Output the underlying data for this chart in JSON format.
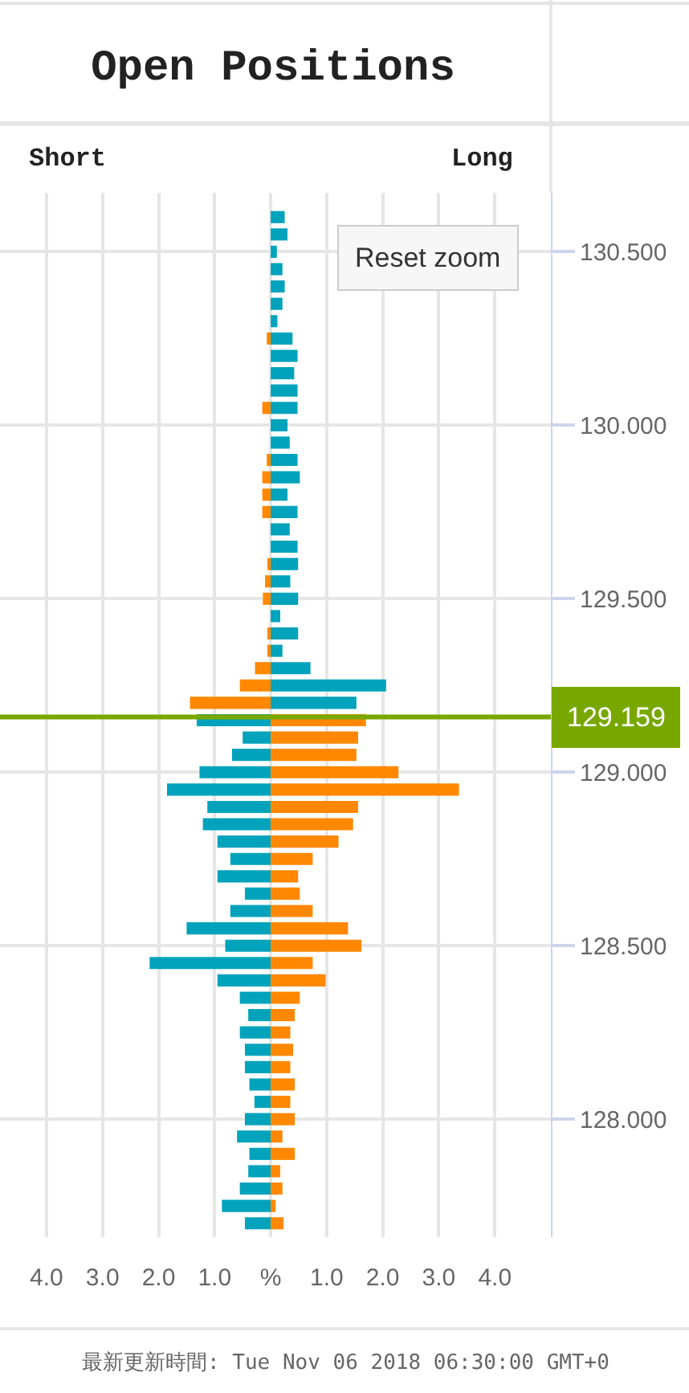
{
  "chart_data": {
    "type": "bar",
    "orientation": "horizontal",
    "stacked": true,
    "title": "Open Positions",
    "annotations": [
      "Short",
      "Long",
      "Reset zoom",
      "最新更新時間: Tue Nov 06 2018 06:30:00 GMT+0"
    ],
    "x": [
      130.6,
      130.55,
      130.5,
      130.45,
      130.4,
      130.35,
      130.3,
      130.25,
      130.2,
      130.15,
      130.1,
      130.05,
      130.0,
      129.95,
      129.9,
      129.85,
      129.8,
      129.75,
      129.7,
      129.65,
      129.6,
      129.55,
      129.5,
      129.45,
      129.4,
      129.35,
      129.3,
      129.25,
      129.2,
      129.15,
      129.1,
      129.05,
      129.0,
      128.95,
      128.9,
      128.85,
      128.8,
      128.75,
      128.7,
      128.65,
      128.6,
      128.55,
      128.5,
      128.45,
      128.4,
      128.35,
      128.3,
      128.25,
      128.2,
      128.15,
      128.1,
      128.05,
      128.0,
      127.95,
      127.9,
      127.85,
      127.8,
      127.75,
      127.7
    ],
    "series": [
      {
        "color": "#00a3bb",
        "values": [
          0.25,
          0.3,
          0.11,
          0.21,
          0.25,
          0.21,
          0.12,
          0.39,
          0.48,
          0.42,
          0.48,
          0.48,
          0.3,
          0.34,
          0.48,
          0.52,
          0.3,
          0.48,
          0.34,
          0.48,
          0.49,
          0.35,
          0.49,
          0.17,
          0.49,
          0.21,
          0.71,
          2.06,
          1.53,
          -1.32,
          -0.5,
          -0.69,
          -1.27,
          -1.85,
          -1.13,
          -1.21,
          -0.95,
          -0.72,
          -0.95,
          -0.46,
          -0.72,
          -1.5,
          -0.81,
          -2.16,
          -0.95,
          -0.55,
          -0.4,
          -0.55,
          -0.46,
          -0.46,
          -0.38,
          -0.29,
          -0.46,
          -0.6,
          -0.38,
          -0.4,
          -0.55,
          -0.87,
          -0.46
        ]
      },
      {
        "color": "#ff8800",
        "values": [
          null,
          null,
          null,
          null,
          null,
          null,
          null,
          -0.07,
          null,
          null,
          null,
          -0.15,
          null,
          null,
          -0.07,
          -0.15,
          -0.15,
          -0.15,
          null,
          null,
          -0.06,
          -0.1,
          -0.14,
          null,
          -0.06,
          -0.06,
          -0.28,
          -0.55,
          -1.44,
          1.7,
          1.56,
          1.53,
          2.28,
          3.36,
          1.56,
          1.47,
          1.21,
          0.75,
          0.49,
          0.52,
          0.75,
          1.38,
          1.62,
          0.75,
          0.98,
          0.52,
          0.43,
          0.35,
          0.4,
          0.35,
          0.43,
          0.35,
          0.43,
          0.21,
          0.43,
          0.17,
          0.21,
          0.09,
          0.23
        ]
      }
    ],
    "xlim": [
      -4.83,
      5.0
    ],
    "xticks": [
      {
        "value": -4,
        "label": "4.0"
      },
      {
        "value": -3,
        "label": "3.0"
      },
      {
        "value": -2,
        "label": "2.0"
      },
      {
        "value": -1,
        "label": "1.0"
      },
      {
        "value": 0,
        "label": "%"
      },
      {
        "value": 1,
        "label": "1.0"
      },
      {
        "value": 2,
        "label": "2.0"
      },
      {
        "value": 3,
        "label": "3.0"
      },
      {
        "value": 4,
        "label": "4.0"
      }
    ],
    "ylim": [
      127.66,
      130.67
    ],
    "yticks": [
      {
        "value": 128.0,
        "label": "128.000"
      },
      {
        "value": 128.5,
        "label": "128.500"
      },
      {
        "value": 129.0,
        "label": "129.000"
      },
      {
        "value": 129.5,
        "label": "129.500"
      },
      {
        "value": 130.0,
        "label": "130.000"
      },
      {
        "value": 130.5,
        "label": "130.500"
      }
    ],
    "ref_lines": [
      {
        "axis": "y",
        "value": 129.159,
        "label": "129.159",
        "color": "#78a800"
      }
    ],
    "grid": true
  }
}
